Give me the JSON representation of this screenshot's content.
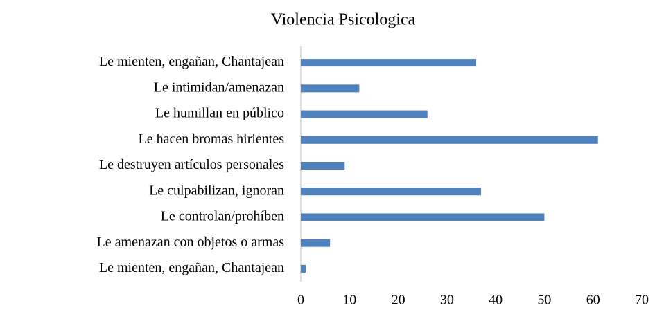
{
  "chart_data": {
    "type": "bar",
    "orientation": "horizontal",
    "title": "Violencia Psicologica",
    "categories": [
      "Le mienten, engañan, Chantajean",
      "Le intimidan/amenazan",
      "Le humillan en público",
      "Le hacen bromas hirientes",
      "Le destruyen artículos personales",
      "Le culpabilizan, ignoran",
      "Le controlan/prohíben",
      "Le amenazan con objetos o armas",
      "Le mienten, engañan, Chantajean"
    ],
    "values": [
      36,
      12,
      26,
      61,
      9,
      37,
      50,
      6,
      1
    ],
    "color": "#4f81bd",
    "xlim": [
      0,
      70
    ],
    "xticks": [
      0,
      10,
      20,
      30,
      40,
      50,
      60,
      70
    ],
    "grid": false
  }
}
